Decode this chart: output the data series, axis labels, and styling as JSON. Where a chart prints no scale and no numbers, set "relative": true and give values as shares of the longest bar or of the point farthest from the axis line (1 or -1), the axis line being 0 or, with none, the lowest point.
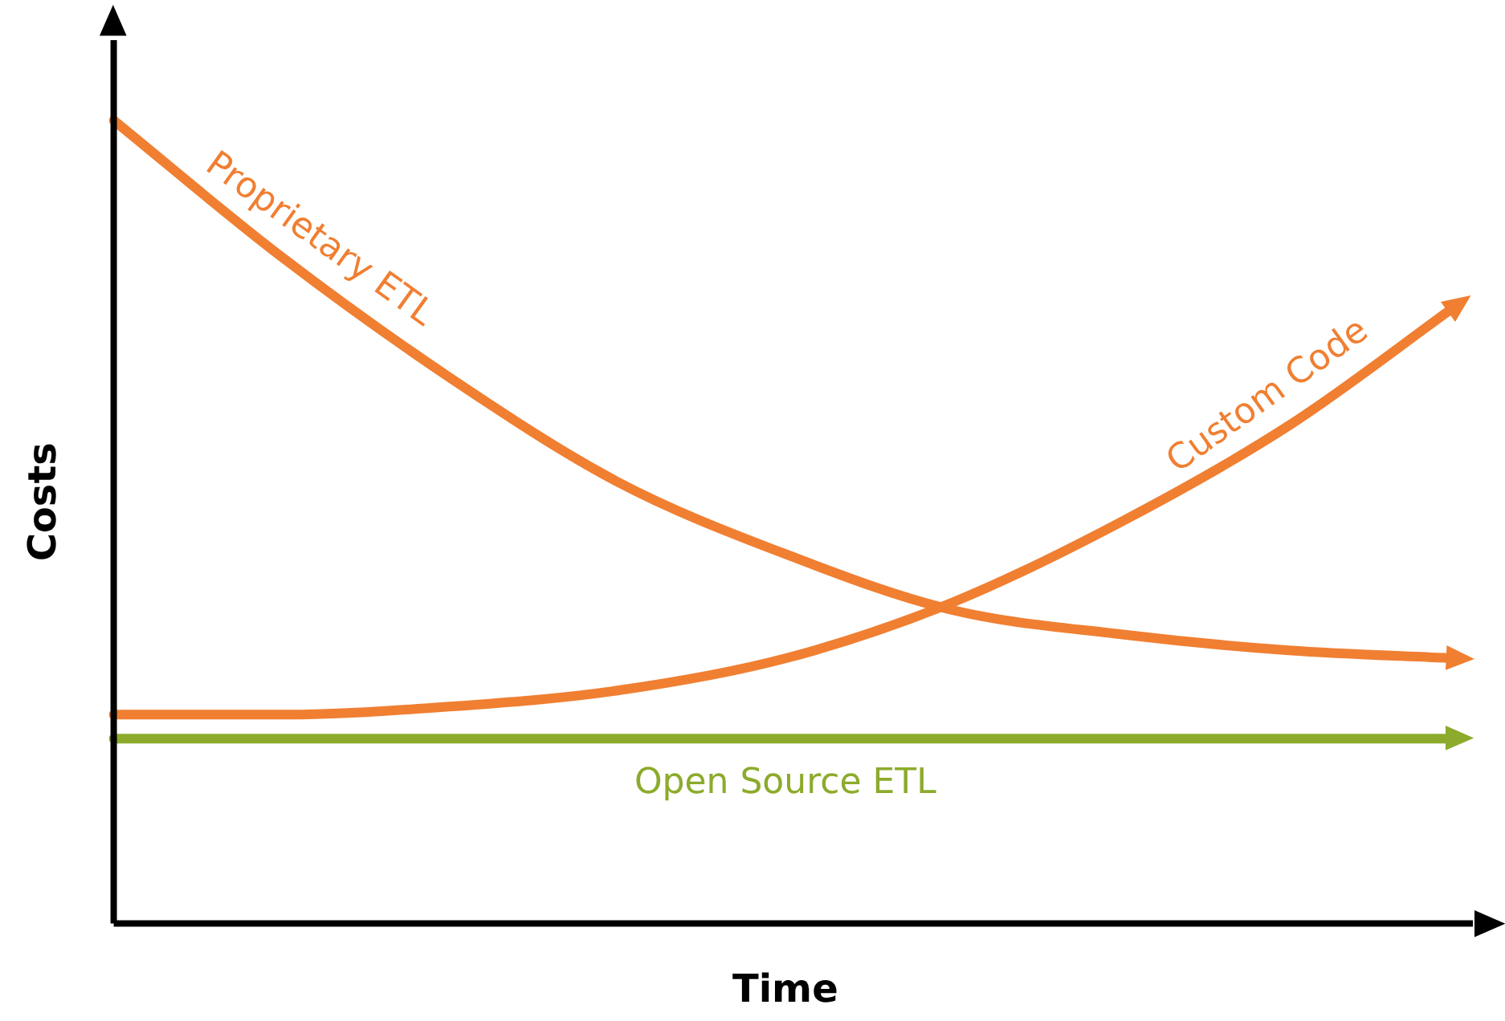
{
  "chart_data": {
    "type": "line",
    "relative": true,
    "xlabel": "Time",
    "ylabel": "Costs",
    "categories": [
      null,
      null,
      null,
      null,
      null,
      null,
      null,
      null,
      null
    ],
    "marker": "none",
    "line_style": "solid",
    "grid": false,
    "legend": false,
    "series": [
      {
        "name": "Proprietary ETL",
        "color": "#f07f32",
        "values": [
          1.0,
          0.83,
          0.68,
          0.55,
          0.46,
          0.39,
          0.36,
          0.34,
          0.33
        ]
      },
      {
        "name": "Custom Code",
        "color": "#f07f32",
        "values": [
          0.26,
          0.26,
          0.27,
          0.29,
          0.33,
          0.4,
          0.5,
          0.62,
          0.77
        ]
      },
      {
        "name": "Open Source ETL",
        "color": "#8cab2c",
        "values": [
          0.23,
          0.23,
          0.23,
          0.23,
          0.23,
          0.23,
          0.23,
          0.23,
          0.23
        ]
      }
    ]
  }
}
